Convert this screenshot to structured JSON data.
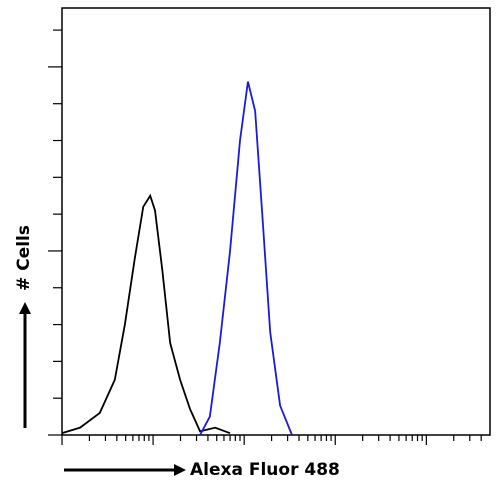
{
  "chart_data": {
    "type": "line",
    "xlabel": "Alexa Fluor 488",
    "ylabel": "# Cells",
    "xscale": "log",
    "xlim": [
      1,
      50000
    ],
    "xticks": [
      1,
      2,
      3,
      4,
      5,
      6,
      7,
      8,
      9,
      10,
      20,
      30,
      40,
      50,
      60,
      70,
      80,
      90,
      100,
      200,
      300,
      400,
      500,
      600,
      700,
      800,
      900,
      1000,
      2000,
      3000,
      4000,
      5000,
      6000,
      7000,
      8000,
      9000,
      10000,
      20000,
      30000,
      40000
    ],
    "ylim": [
      0,
      11.6
    ],
    "yticks": [
      0,
      1,
      2,
      3,
      4,
      5,
      6,
      7,
      8,
      9,
      10,
      11
    ],
    "series": [
      {
        "color": "#000000",
        "x": [
          1,
          1.58,
          2.6,
          3.8,
          4.9,
          6.3,
          7.8,
          9.3,
          10.5,
          12.6,
          15.4,
          19.8,
          25.5,
          32.8,
          48,
          70
        ],
        "values": [
          0.05,
          0.2,
          0.6,
          1.5,
          3.0,
          4.8,
          6.2,
          6.5,
          6.1,
          4.5,
          2.5,
          1.5,
          0.7,
          0.1,
          0.2,
          0.05
        ]
      },
      {
        "color": "#1a1adc",
        "x": [
          32.8,
          42,
          54,
          70,
          90,
          110,
          132,
          158,
          193,
          248,
          335
        ],
        "values": [
          0,
          0.5,
          2.5,
          5,
          8,
          9.6,
          8.8,
          6,
          2.8,
          0.8,
          0
        ]
      }
    ]
  }
}
